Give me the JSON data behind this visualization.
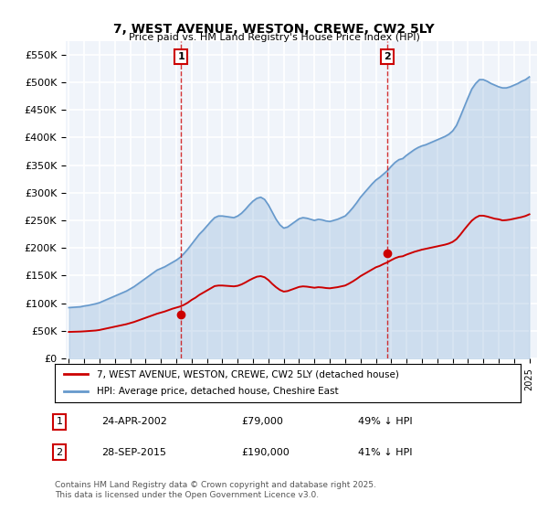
{
  "title": "7, WEST AVENUE, WESTON, CREWE, CW2 5LY",
  "subtitle": "Price paid vs. HM Land Registry's House Price Index (HPI)",
  "ylabel_ticks": [
    "£0",
    "£50K",
    "£100K",
    "£150K",
    "£200K",
    "£250K",
    "£300K",
    "£350K",
    "£400K",
    "£450K",
    "£500K",
    "£550K"
  ],
  "ylim": [
    0,
    575000
  ],
  "xlim_start": 1995.0,
  "xlim_end": 2025.5,
  "sale1_year": 2002.31,
  "sale1_price": 79000,
  "sale2_year": 2015.74,
  "sale2_price": 190000,
  "legend_line1": "7, WEST AVENUE, WESTON, CREWE, CW2 5LY (detached house)",
  "legend_line2": "HPI: Average price, detached house, Cheshire East",
  "annotation1_label": "1",
  "annotation1_date": "24-APR-2002",
  "annotation1_price": "£79,000",
  "annotation1_pct": "49% ↓ HPI",
  "annotation2_label": "2",
  "annotation2_date": "28-SEP-2015",
  "annotation2_price": "£190,000",
  "annotation2_pct": "41% ↓ HPI",
  "footer": "Contains HM Land Registry data © Crown copyright and database right 2025.\nThis data is licensed under the Open Government Licence v3.0.",
  "line_color_red": "#cc0000",
  "line_color_blue": "#6699cc",
  "background_color": "#f0f4fa",
  "grid_color": "#ffffff",
  "vline_color": "#cc0000",
  "hpi_years": [
    1995.0,
    1995.25,
    1995.5,
    1995.75,
    1996.0,
    1996.25,
    1996.5,
    1996.75,
    1997.0,
    1997.25,
    1997.5,
    1997.75,
    1998.0,
    1998.25,
    1998.5,
    1998.75,
    1999.0,
    1999.25,
    1999.5,
    1999.75,
    2000.0,
    2000.25,
    2000.5,
    2000.75,
    2001.0,
    2001.25,
    2001.5,
    2001.75,
    2002.0,
    2002.25,
    2002.5,
    2002.75,
    2003.0,
    2003.25,
    2003.5,
    2003.75,
    2004.0,
    2004.25,
    2004.5,
    2004.75,
    2005.0,
    2005.25,
    2005.5,
    2005.75,
    2006.0,
    2006.25,
    2006.5,
    2006.75,
    2007.0,
    2007.25,
    2007.5,
    2007.75,
    2008.0,
    2008.25,
    2008.5,
    2008.75,
    2009.0,
    2009.25,
    2009.5,
    2009.75,
    2010.0,
    2010.25,
    2010.5,
    2010.75,
    2011.0,
    2011.25,
    2011.5,
    2011.75,
    2012.0,
    2012.25,
    2012.5,
    2012.75,
    2013.0,
    2013.25,
    2013.5,
    2013.75,
    2014.0,
    2014.25,
    2014.5,
    2014.75,
    2015.0,
    2015.25,
    2015.5,
    2015.75,
    2016.0,
    2016.25,
    2016.5,
    2016.75,
    2017.0,
    2017.25,
    2017.5,
    2017.75,
    2018.0,
    2018.25,
    2018.5,
    2018.75,
    2019.0,
    2019.25,
    2019.5,
    2019.75,
    2020.0,
    2020.25,
    2020.5,
    2020.75,
    2021.0,
    2021.25,
    2021.5,
    2021.75,
    2022.0,
    2022.25,
    2022.5,
    2022.75,
    2023.0,
    2023.25,
    2023.5,
    2023.75,
    2024.0,
    2024.25,
    2024.5,
    2024.75,
    2025.0
  ],
  "hpi_values": [
    92000,
    92500,
    93000,
    93500,
    95000,
    96000,
    97500,
    99000,
    101000,
    104000,
    107000,
    110000,
    113000,
    116000,
    119000,
    122000,
    126000,
    130000,
    135000,
    140000,
    145000,
    150000,
    155000,
    160000,
    163000,
    166000,
    170000,
    174000,
    178000,
    183000,
    190000,
    198000,
    207000,
    216000,
    225000,
    232000,
    240000,
    248000,
    255000,
    258000,
    258000,
    257000,
    256000,
    255000,
    258000,
    263000,
    270000,
    278000,
    285000,
    290000,
    292000,
    288000,
    278000,
    265000,
    252000,
    242000,
    236000,
    238000,
    243000,
    248000,
    253000,
    255000,
    254000,
    252000,
    250000,
    252000,
    251000,
    249000,
    248000,
    250000,
    252000,
    255000,
    258000,
    265000,
    273000,
    282000,
    292000,
    300000,
    308000,
    316000,
    323000,
    328000,
    334000,
    340000,
    348000,
    355000,
    360000,
    362000,
    368000,
    373000,
    378000,
    382000,
    385000,
    387000,
    390000,
    393000,
    396000,
    399000,
    402000,
    406000,
    412000,
    422000,
    438000,
    455000,
    472000,
    488000,
    498000,
    505000,
    505000,
    502000,
    498000,
    495000,
    492000,
    490000,
    490000,
    492000,
    495000,
    498000,
    502000,
    505000,
    510000
  ],
  "red_years": [
    1995.0,
    1995.25,
    1995.5,
    1995.75,
    1996.0,
    1996.25,
    1996.5,
    1996.75,
    1997.0,
    1997.25,
    1997.5,
    1997.75,
    1998.0,
    1998.25,
    1998.5,
    1998.75,
    1999.0,
    1999.25,
    1999.5,
    1999.75,
    2000.0,
    2000.25,
    2000.5,
    2000.75,
    2001.0,
    2001.25,
    2001.5,
    2001.75,
    2002.0,
    2002.25,
    2002.5,
    2002.75,
    2003.0,
    2003.25,
    2003.5,
    2003.75,
    2004.0,
    2004.25,
    2004.5,
    2004.75,
    2005.0,
    2005.25,
    2005.5,
    2005.75,
    2006.0,
    2006.25,
    2006.5,
    2006.75,
    2007.0,
    2007.25,
    2007.5,
    2007.75,
    2008.0,
    2008.25,
    2008.5,
    2008.75,
    2009.0,
    2009.25,
    2009.5,
    2009.75,
    2010.0,
    2010.25,
    2010.5,
    2010.75,
    2011.0,
    2011.25,
    2011.5,
    2011.75,
    2012.0,
    2012.25,
    2012.5,
    2012.75,
    2013.0,
    2013.25,
    2013.5,
    2013.75,
    2014.0,
    2014.25,
    2014.5,
    2014.75,
    2015.0,
    2015.25,
    2015.5,
    2015.75,
    2016.0,
    2016.25,
    2016.5,
    2016.75,
    2017.0,
    2017.25,
    2017.5,
    2017.75,
    2018.0,
    2018.25,
    2018.5,
    2018.75,
    2019.0,
    2019.25,
    2019.5,
    2019.75,
    2020.0,
    2020.25,
    2020.5,
    2020.75,
    2021.0,
    2021.25,
    2021.5,
    2021.75,
    2022.0,
    2022.25,
    2022.5,
    2022.75,
    2023.0,
    2023.25,
    2023.5,
    2023.75,
    2024.0,
    2024.25,
    2024.5,
    2024.75,
    2025.0
  ],
  "red_values": [
    48000,
    48200,
    48400,
    48600,
    49000,
    49500,
    50000,
    50500,
    51500,
    53000,
    54500,
    56000,
    57500,
    59000,
    60500,
    62000,
    64000,
    66000,
    68500,
    71000,
    73500,
    76000,
    78500,
    81000,
    83000,
    85000,
    87500,
    90000,
    92000,
    94000,
    97000,
    101000,
    106000,
    110000,
    115000,
    119000,
    123000,
    127000,
    131000,
    132000,
    132000,
    131500,
    131000,
    130500,
    131500,
    134000,
    137500,
    141500,
    145000,
    148000,
    149000,
    147000,
    142000,
    135000,
    129000,
    124000,
    121000,
    122000,
    124500,
    127000,
    129500,
    130500,
    130000,
    129000,
    128000,
    129000,
    128500,
    127500,
    127000,
    128000,
    129000,
    130500,
    132000,
    135500,
    139500,
    144000,
    149000,
    153000,
    157000,
    161000,
    165000,
    167500,
    171000,
    174000,
    178000,
    181500,
    184000,
    185000,
    188000,
    190500,
    193000,
    195000,
    197000,
    198500,
    200000,
    201500,
    203000,
    204500,
    206000,
    208000,
    211000,
    216000,
    224000,
    233000,
    241500,
    249500,
    255000,
    258500,
    258500,
    257000,
    255000,
    253000,
    252000,
    250000,
    250500,
    251500,
    253000,
    254500,
    256000,
    258000,
    261000
  ]
}
